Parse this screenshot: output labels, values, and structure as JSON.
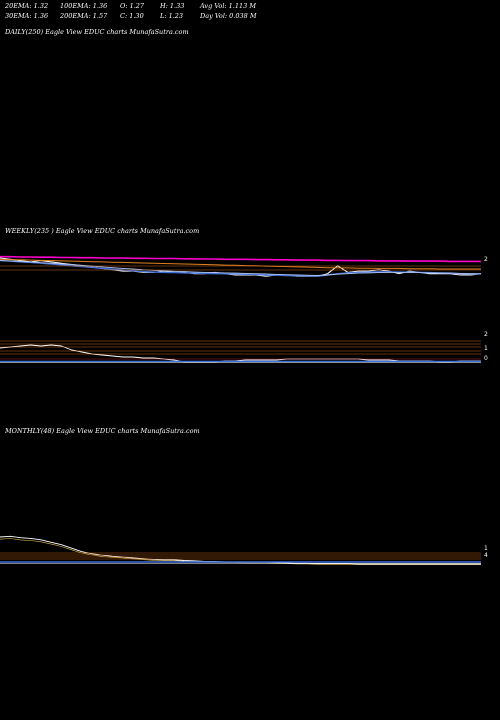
{
  "header": {
    "row1": [
      {
        "text": "20EMA: 1.32"
      },
      {
        "text": "100EMA: 1.36"
      },
      {
        "text": "O: 1.27"
      },
      {
        "text": "H: 1.33"
      },
      {
        "text": "Avg Vol: 1.113  M"
      }
    ],
    "row2": [
      {
        "text": "30EMA: 1.36"
      },
      {
        "text": "200EMA: 1.57"
      },
      {
        "text": "C: 1.30"
      },
      {
        "text": "L: 1.23"
      },
      {
        "text": "Day Vol: 0.038  M"
      }
    ]
  },
  "panels": {
    "daily": {
      "label": "DAILY(250) Eagle   View  EDUC charts MunafaSutra.com"
    },
    "weekly": {
      "label": "WEEKLY(235                         ) Eagle   View  EDUC charts MunafaSutra.com",
      "tick": "2"
    },
    "monthly": {
      "label": "MONTHLY(48) Eagle   View  EDUC charts MunafaSutra.com"
    }
  },
  "colors": {
    "background": "#000000",
    "price": "#ffffff",
    "ema_blue": "#3f6fd8",
    "ema_light": "#b0c4ee",
    "ema_magenta": "#ff00cc",
    "ema_orange": "#e08020",
    "grid_orange": "#c86414",
    "grid_red": "#b02020"
  },
  "chart_data": [
    {
      "type": "line",
      "title": "WEEKLY(235) Eagle View EDUC charts MunafaSutra.com",
      "ylim": [
        0.8,
        2.6
      ],
      "yticks": [
        "2"
      ],
      "series": [
        {
          "role": "price",
          "values": [
            2.6,
            2.55,
            2.5,
            2.45,
            2.5,
            2.45,
            2.4,
            2.35,
            2.3,
            2.25,
            2.2,
            2.15,
            2.1,
            2.1,
            2.05,
            2.05,
            2.1,
            2.05,
            2.05,
            2.0,
            2.0,
            2.05,
            2.0,
            1.95,
            1.95,
            1.95,
            1.9,
            1.95,
            1.95,
            1.9,
            1.9,
            1.9,
            2.0,
            2.3,
            2.05,
            2.1,
            2.1,
            2.15,
            2.1,
            2.0,
            2.1,
            2.05,
            2.0,
            2.0,
            2.0,
            1.95,
            1.95,
            2.0
          ]
        },
        {
          "role": "ema",
          "values": [
            2.5,
            2.48,
            2.45,
            2.43,
            2.4,
            2.37,
            2.34,
            2.3,
            2.27,
            2.24,
            2.2,
            2.17,
            2.14,
            2.11,
            2.08,
            2.06,
            2.05,
            2.04,
            2.03,
            2.02,
            2.01,
            2.0,
            2.0,
            1.99,
            1.98,
            1.97,
            1.95,
            1.94,
            1.93,
            1.92,
            1.92,
            1.9,
            1.95,
            2.0,
            2.03,
            2.05,
            2.06,
            2.07,
            2.07,
            2.06,
            2.06,
            2.05,
            2.04,
            2.03,
            2.02,
            2.0,
            1.99,
            1.99
          ]
        },
        {
          "role": "ema",
          "values": [
            2.5,
            2.49,
            2.47,
            2.45,
            2.42,
            2.4,
            2.37,
            2.35,
            2.32,
            2.29,
            2.26,
            2.23,
            2.2,
            2.18,
            2.15,
            2.13,
            2.11,
            2.09,
            2.08,
            2.06,
            2.05,
            2.04,
            2.03,
            2.02,
            2.01,
            2.0,
            1.99,
            1.97,
            1.96,
            1.95,
            1.94,
            1.93,
            1.95,
            1.98,
            2.0,
            2.02,
            2.03,
            2.04,
            2.05,
            2.05,
            2.05,
            2.04,
            2.03,
            2.03,
            2.02,
            2.01,
            2.0,
            2.0
          ]
        },
        {
          "role": "ema",
          "values": [
            2.55,
            2.54,
            2.53,
            2.52,
            2.51,
            2.5,
            2.49,
            2.48,
            2.47,
            2.46,
            2.45,
            2.44,
            2.43,
            2.42,
            2.41,
            2.4,
            2.39,
            2.38,
            2.37,
            2.36,
            2.35,
            2.34,
            2.33,
            2.32,
            2.31,
            2.3,
            2.29,
            2.28,
            2.27,
            2.26,
            2.25,
            2.24,
            2.23,
            2.22,
            2.22,
            2.21,
            2.21,
            2.2,
            2.2,
            2.2,
            2.19,
            2.19,
            2.19,
            2.18,
            2.18,
            2.18,
            2.18,
            2.18
          ]
        },
        {
          "role": "ema",
          "values": [
            2.65,
            2.65,
            2.64,
            2.64,
            2.63,
            2.63,
            2.62,
            2.62,
            2.61,
            2.61,
            2.6,
            2.6,
            2.6,
            2.59,
            2.59,
            2.58,
            2.58,
            2.58,
            2.57,
            2.57,
            2.56,
            2.56,
            2.55,
            2.55,
            2.55,
            2.54,
            2.54,
            2.53,
            2.53,
            2.52,
            2.52,
            2.52,
            2.51,
            2.51,
            2.5,
            2.5,
            2.5,
            2.49,
            2.49,
            2.49,
            2.48,
            2.48,
            2.48,
            2.48,
            2.47,
            2.47,
            2.47,
            2.47
          ]
        }
      ]
    },
    {
      "type": "line",
      "title": "MONTHLY(48) Eagle View EDUC charts MunafaSutra.com",
      "series": [
        {
          "role": "price",
          "values": [
            9.0,
            9.2,
            8.8,
            8.6,
            8.2,
            7.5,
            6.8,
            5.8,
            4.8,
            4.2,
            3.8,
            3.5,
            3.3,
            3.0,
            2.8,
            2.6,
            2.5,
            2.5,
            2.3,
            2.2,
            2.0,
            2.0,
            1.9,
            1.9,
            1.8,
            1.8,
            1.8,
            1.7,
            1.6,
            1.5,
            1.5,
            1.4,
            1.4,
            1.4,
            1.4,
            1.3,
            1.3,
            1.3,
            1.3,
            1.3,
            1.3,
            1.3,
            1.3,
            1.3,
            1.3,
            1.3,
            1.3,
            1.3
          ]
        }
      ]
    }
  ]
}
